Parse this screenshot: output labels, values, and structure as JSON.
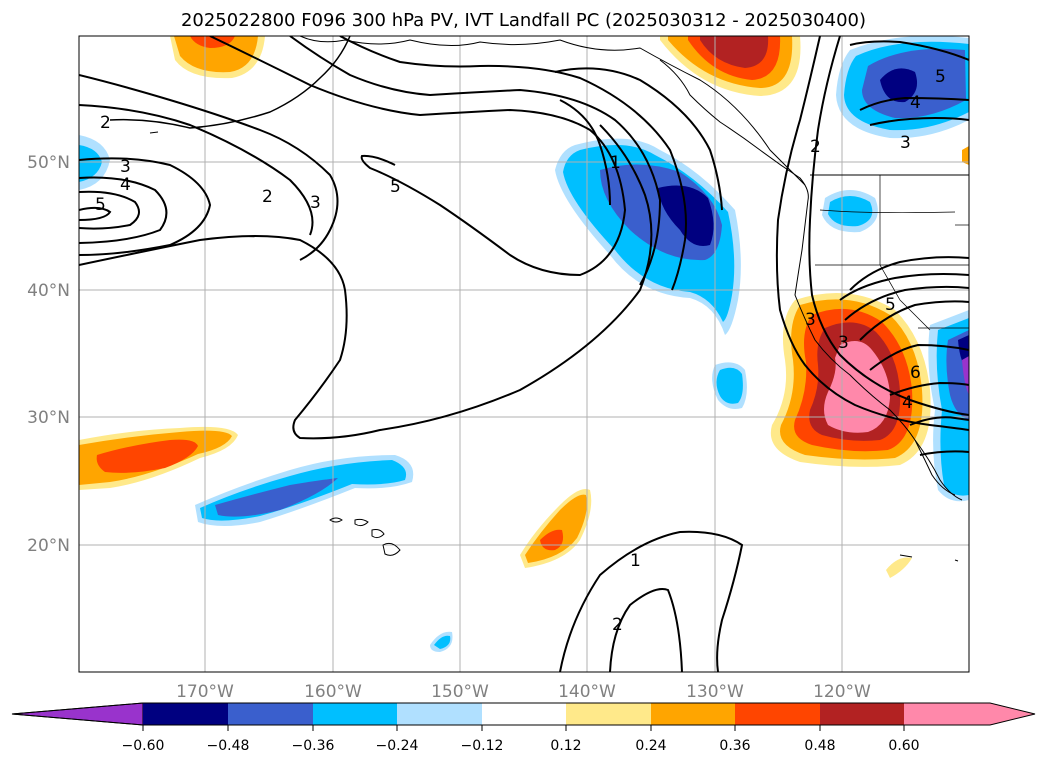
{
  "title": "2025022800 F096 300 hPa PV, IVT Landfall PC (2025030312 - 2025030400)",
  "longitude_labels": [
    "170°W",
    "160°W",
    "150°W",
    "140°W",
    "130°W",
    "120°W"
  ],
  "latitude_labels": [
    "20°N",
    "30°N",
    "40°N",
    "50°N"
  ],
  "contour_labels": [
    "2",
    "3",
    "4",
    "5",
    "2",
    "3",
    "5",
    "1",
    "2",
    "3",
    "5",
    "6",
    "4",
    "3",
    "3",
    "1",
    "2",
    "5",
    "4"
  ],
  "colorbar": {
    "tick_labels": [
      "−0.60",
      "−0.48",
      "−0.36",
      "−0.24",
      "−0.12",
      "0.12",
      "0.24",
      "0.36",
      "0.48",
      "0.60"
    ],
    "colors": [
      "#9933cc",
      "#000080",
      "#3a5fcd",
      "#00bfff",
      "#b0e0ff",
      "#ffffff",
      "#ffe98a",
      "#ffa500",
      "#ff4500",
      "#b22222",
      "#ff88aa",
      "#ff88aa"
    ]
  },
  "colors": {
    "land_outline": "#000000",
    "grid": "#b0b0b0"
  }
}
